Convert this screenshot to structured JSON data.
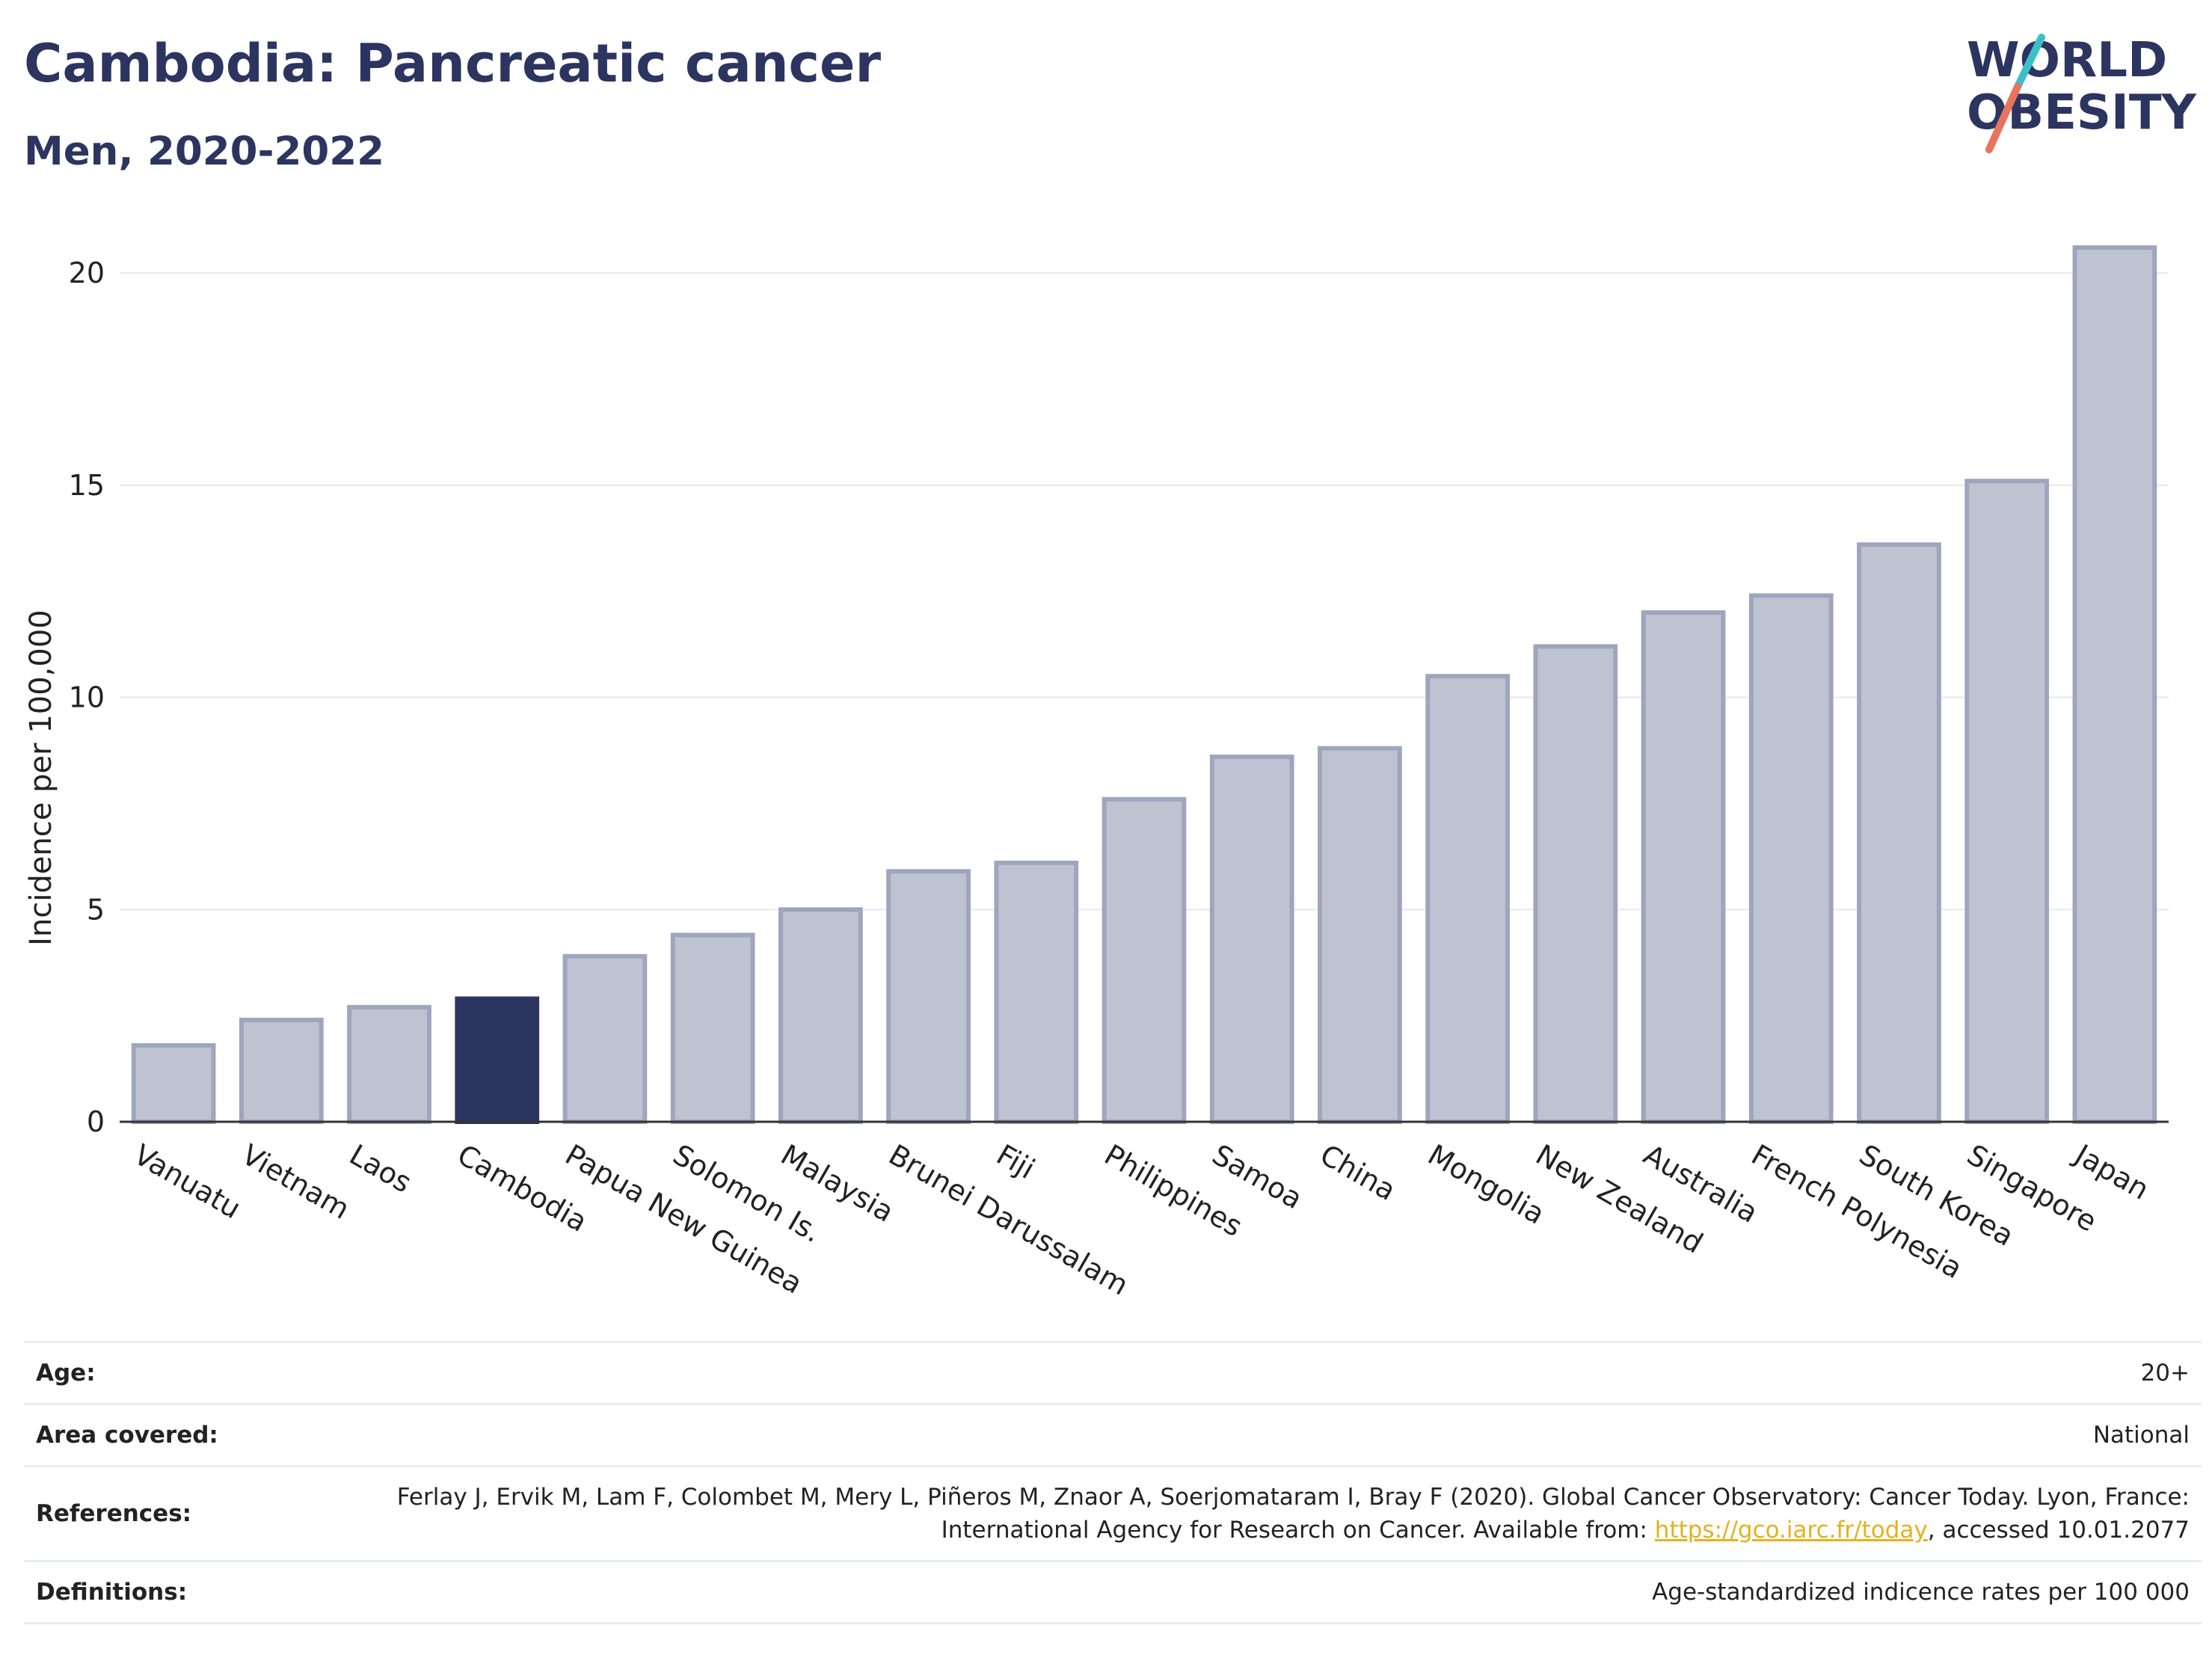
{
  "header": {
    "title": "Cambodia: Pancreatic cancer",
    "subtitle": "Men, 2020-2022"
  },
  "logo": {
    "line1": "WORLD",
    "line2": "OBESITY",
    "slash_colors": [
      "#3cbfc8",
      "#e8735f"
    ]
  },
  "chart_data": {
    "type": "bar",
    "ylabel": "Incidence per 100,000",
    "xlabel": "",
    "ylim": [
      0,
      21.5
    ],
    "yticks": [
      0,
      5,
      10,
      15,
      20
    ],
    "grid": true,
    "highlight": "Cambodia",
    "colors": {
      "default_fill": "#bfc3d1",
      "default_stroke": "#9ea5bd",
      "highlight_fill": "#2c3560"
    },
    "categories": [
      "Vanuatu",
      "Vietnam",
      "Laos",
      "Cambodia",
      "Papua New Guinea",
      "Solomon Is.",
      "Malaysia",
      "Brunei Darussalam",
      "Fiji",
      "Philippines",
      "Samoa",
      "China",
      "Mongolia",
      "New Zealand",
      "Australia",
      "French Polynesia",
      "South Korea",
      "Singapore",
      "Japan"
    ],
    "values": [
      1.8,
      2.4,
      2.7,
      2.9,
      3.9,
      4.4,
      5.0,
      5.9,
      6.1,
      7.6,
      8.6,
      8.8,
      10.5,
      11.2,
      12.0,
      12.4,
      13.6,
      15.1,
      20.6
    ]
  },
  "info": {
    "age_label": "Age:",
    "age_value": "20+",
    "area_label": "Area covered:",
    "area_value": "National",
    "references_label": "References:",
    "references_text_1": "Ferlay J, Ervik M, Lam F, Colombet M, Mery L, Piñeros M, Znaor A, Soerjomataram I, Bray F (2020). Global Cancer Observatory: Cancer Today. Lyon, France: International Agency for Research on Cancer. Available from: ",
    "references_link": "https://gco.iarc.fr/today",
    "references_text_2": ", accessed 10.01.2077",
    "definitions_label": "Definitions:",
    "definitions_value": "Age-standardized indicence rates per 100 000"
  }
}
